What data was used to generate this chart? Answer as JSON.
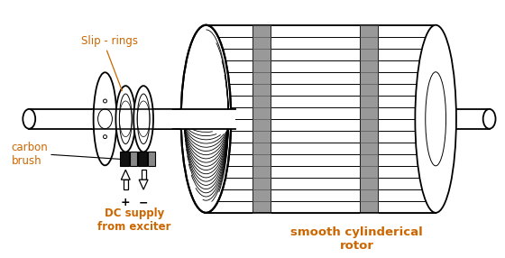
{
  "bg_color": "#ffffff",
  "line_color": "#000000",
  "text_color_orange": "#cc6600",
  "fig_width": 5.6,
  "fig_height": 2.86,
  "dpi": 100,
  "labels": {
    "slip_rings": "Slip - rings",
    "carbon_brush": "carbon\nbrush",
    "dc_supply": "DC supply\nfrom exciter",
    "plus": "+",
    "minus": "−",
    "smooth_rotor": "smooth cylinderical\nrotor"
  }
}
